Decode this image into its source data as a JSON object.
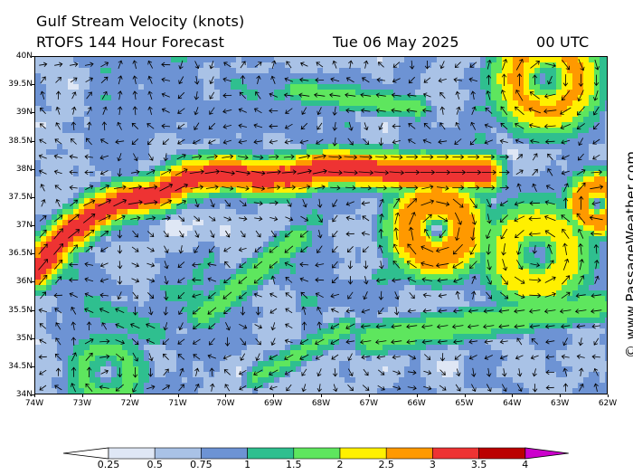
{
  "header": {
    "title": "Gulf Stream Velocity (knots)",
    "subtitle": "RTOFS 144 Hour Forecast",
    "date": "Tue 06 May 2025",
    "time": "00 UTC"
  },
  "watermark": "© www.PassageWeather.com",
  "map": {
    "lat_labels": [
      "40N",
      "39.5N",
      "39N",
      "38.5N",
      "38N",
      "37.5N",
      "37N",
      "36.5N",
      "36N",
      "35.5N",
      "35N",
      "34.5N",
      "34N"
    ],
    "lon_labels": [
      "74W",
      "73W",
      "72W",
      "71W",
      "70W",
      "69W",
      "68W",
      "67W",
      "66W",
      "65W",
      "64W",
      "63W",
      "62W"
    ],
    "lat_range": [
      34,
      40
    ],
    "lon_range": [
      -74,
      -62
    ]
  },
  "colorbar": {
    "labels": [
      "0.25",
      "0.5",
      "0.75",
      "1",
      "1.5",
      "2",
      "2.5",
      "3",
      "3.5",
      "4"
    ],
    "bins": [
      {
        "color": "#ffffff"
      },
      {
        "color": "#dfe7f5"
      },
      {
        "color": "#a9c2e6"
      },
      {
        "color": "#6d93d4"
      },
      {
        "color": "#2fbf8f"
      },
      {
        "color": "#5ee65e"
      },
      {
        "color": "#fff000"
      },
      {
        "color": "#ff9900"
      },
      {
        "color": "#ee3333"
      },
      {
        "color": "#bb0000"
      },
      {
        "color": "#cc00cc"
      }
    ]
  }
}
